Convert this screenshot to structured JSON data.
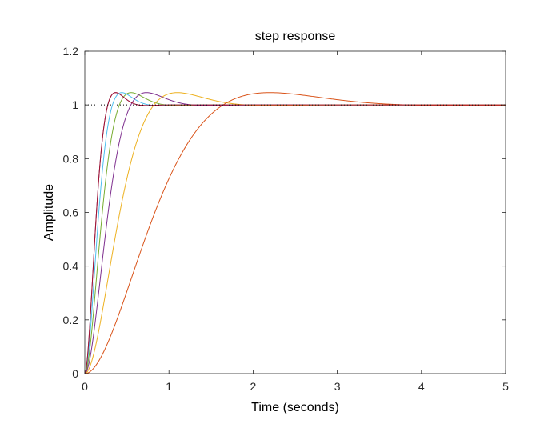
{
  "chart_data": {
    "type": "line",
    "title": "step response",
    "xlabel": "Time (seconds)",
    "ylabel": "Amplitude",
    "xlim": [
      0,
      5
    ],
    "ylim": [
      0,
      1.2
    ],
    "xticks": [
      "0",
      "1",
      "2",
      "3",
      "4",
      "5"
    ],
    "yticks": [
      "0",
      "0.2",
      "0.4",
      "0.6",
      "0.8",
      "1",
      "1.2"
    ],
    "grid": false,
    "steady_state_reference": 1,
    "series": [
      {
        "peak_time": 0.366,
        "peak_value": 1.046,
        "color": "#7E2F8E"
      },
      {
        "peak_time": 0.44,
        "peak_value": 1.046,
        "color": "#4DBEEE"
      },
      {
        "peak_time": 0.55,
        "peak_value": 1.046,
        "color": "#77AC30"
      },
      {
        "peak_time": 0.733,
        "peak_value": 1.046,
        "color": "#7E2F8E"
      },
      {
        "peak_time": 1.1,
        "peak_value": 1.046,
        "color": "#EDB120"
      },
      {
        "peak_time": 2.2,
        "peak_value": 1.046,
        "color": "#D95319"
      },
      {
        "peak_time": 0.366,
        "peak_value": 1.046,
        "color": "#A2142F"
      }
    ]
  }
}
